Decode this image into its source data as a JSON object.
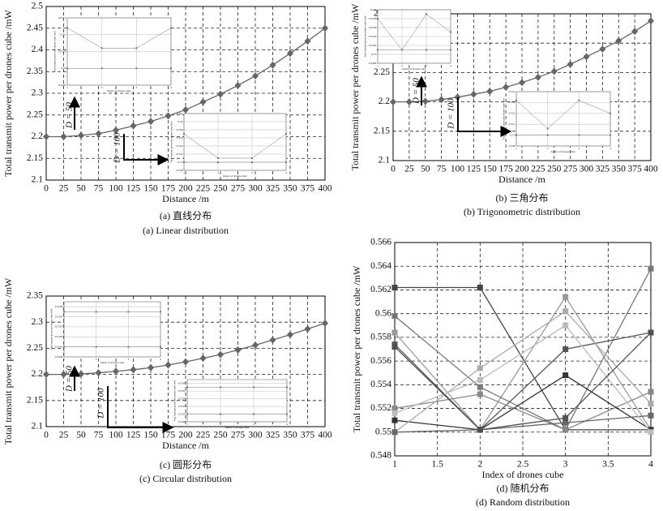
{
  "chart_data": [
    {
      "type": "line",
      "color": "#666666",
      "marker": "diamond",
      "x": [
        0,
        25,
        50,
        75,
        100,
        125,
        150,
        175,
        200,
        225,
        250,
        275,
        300,
        325,
        350,
        375,
        400
      ],
      "values": [
        2.2,
        2.2,
        2.203,
        2.207,
        2.215,
        2.225,
        2.235,
        2.248,
        2.262,
        2.28,
        2.298,
        2.318,
        2.34,
        2.365,
        2.392,
        2.42,
        2.45
      ],
      "xlim": [
        0,
        400
      ],
      "xticks": [
        0,
        25,
        50,
        75,
        100,
        125,
        150,
        175,
        200,
        225,
        250,
        275,
        300,
        325,
        350,
        375,
        400
      ],
      "ylim": [
        2.1,
        2.5
      ],
      "yticks": [
        2.1,
        2.15,
        2.2,
        2.25,
        2.3,
        2.35,
        2.4,
        2.45,
        2.5
      ],
      "grid": true,
      "x_label": "Distance /m",
      "y_label": "Total transmit power per drones cube /mW",
      "caption": "(a) 直线分布",
      "subtitle": "(a) Linear distribution",
      "annotations": [
        "D = 50",
        "D = 100"
      ],
      "insets": [
        {
          "type": "line",
          "x": [
            1,
            2,
            3,
            4
          ],
          "xlim": [
            1,
            4
          ],
          "xticks": [
            1,
            2,
            3,
            4
          ],
          "ylim": [
            0.5495,
            0.5515
          ],
          "yticks": [
            0.5495,
            0.55,
            0.5505,
            0.551,
            0.5515
          ],
          "grid": true,
          "x_label": "Index of drones cube",
          "y_label": "Total transmit power per drones cube /mW",
          "series": [
            {
              "color": "#777777",
              "values": [
                0.5512,
                0.5506,
                0.5506,
                0.5512
              ]
            },
            {
              "color": "#777777",
              "values": [
                0.55,
                0.55,
                0.55,
                0.55
              ]
            }
          ]
        },
        {
          "type": "line",
          "x": [
            1,
            2,
            3,
            4
          ],
          "xlim": [
            1,
            4
          ],
          "xticks": [
            1,
            2,
            3,
            4
          ],
          "ylim": [
            0.548,
            0.562
          ],
          "yticks": [
            0.548,
            0.55,
            0.552,
            0.554,
            0.556,
            0.558,
            0.56,
            0.562
          ],
          "grid": true,
          "x_label": "Index of drones cube",
          "y_label": "Total transmit power per drones cube /mW",
          "series": [
            {
              "color": "#777777",
              "values": [
                0.557,
                0.551,
                0.551,
                0.557
              ]
            },
            {
              "color": "#777777",
              "values": [
                0.55,
                0.55,
                0.55,
                0.55
              ]
            }
          ]
        }
      ]
    },
    {
      "type": "line",
      "color": "#666666",
      "marker": "diamond",
      "x": [
        0,
        25,
        50,
        75,
        100,
        125,
        150,
        175,
        200,
        225,
        250,
        275,
        300,
        325,
        350,
        375,
        400
      ],
      "values": [
        2.2,
        2.2,
        2.201,
        2.204,
        2.208,
        2.213,
        2.218,
        2.225,
        2.233,
        2.242,
        2.252,
        2.264,
        2.277,
        2.29,
        2.304,
        2.32,
        2.338
      ],
      "xlim": [
        0,
        400
      ],
      "xticks": [
        0,
        25,
        50,
        75,
        100,
        125,
        150,
        175,
        200,
        225,
        250,
        275,
        300,
        325,
        350,
        375,
        400
      ],
      "ylim": [
        2.1,
        2.35
      ],
      "yticks": [
        2.1,
        2.15,
        2.2,
        2.25,
        2.3,
        2.35
      ],
      "grid": true,
      "x_label": "Distance /m",
      "y_label": "Total transmit power per drones cube /mW",
      "caption": "(b) 三角分布",
      "subtitle": "(b) Trigonometric distribution",
      "annotations": [
        "D = 50",
        "D = 100"
      ],
      "insets": [
        {
          "type": "line",
          "x": [
            1,
            2,
            3,
            4
          ],
          "xlim": [
            1,
            4
          ],
          "xticks": [
            1,
            2,
            3,
            4
          ],
          "ylim": [
            0.5498,
            0.551
          ],
          "yticks": [
            0.5498,
            0.55,
            0.5502,
            0.5504,
            0.5506,
            0.5508,
            0.551
          ],
          "grid": true,
          "x_label": "Index of drones cube",
          "y_label": "Total transmit power per drones cube /mW",
          "series": [
            {
              "color": "#777777",
              "values": [
                0.5508,
                0.5501,
                0.5509,
                0.5505
              ]
            },
            {
              "color": "#777777",
              "values": [
                0.5501,
                0.5501,
                0.5501,
                0.5501
              ]
            }
          ]
        },
        {
          "type": "line",
          "x": [
            1,
            2,
            3,
            4
          ],
          "xlim": [
            1,
            4
          ],
          "xticks": [
            1,
            2,
            3,
            4
          ],
          "ylim": [
            0.549,
            0.554
          ],
          "yticks": [
            0.549,
            0.55,
            0.551,
            0.552,
            0.553,
            0.554
          ],
          "grid": true,
          "x_label": "Index of drones cube",
          "y_label": "Total transmit power per drones cube /mW",
          "series": [
            {
              "color": "#777777",
              "values": [
                0.5532,
                0.5506,
                0.5532,
                0.552
              ]
            },
            {
              "color": "#777777",
              "values": [
                0.55,
                0.55,
                0.55,
                0.55
              ]
            }
          ]
        }
      ]
    },
    {
      "type": "line",
      "color": "#666666",
      "marker": "diamond",
      "x": [
        0,
        25,
        50,
        75,
        100,
        125,
        150,
        175,
        200,
        225,
        250,
        275,
        300,
        325,
        350,
        375,
        400
      ],
      "values": [
        2.2,
        2.2,
        2.201,
        2.203,
        2.206,
        2.209,
        2.213,
        2.218,
        2.224,
        2.231,
        2.238,
        2.247,
        2.256,
        2.266,
        2.276,
        2.287,
        2.298
      ],
      "xlim": [
        0,
        400
      ],
      "xticks": [
        0,
        25,
        50,
        75,
        100,
        125,
        150,
        175,
        200,
        225,
        250,
        275,
        300,
        325,
        350,
        375,
        400
      ],
      "ylim": [
        2.1,
        2.35
      ],
      "yticks": [
        2.1,
        2.15,
        2.2,
        2.25,
        2.3,
        2.35
      ],
      "grid": true,
      "x_label": "Distance /m",
      "y_label": "Total transmit power per drones cube /mW",
      "caption": "(c) 圆形分布",
      "subtitle": "(c) Circular distribution",
      "annotations": [
        "D = 50",
        "D = 100"
      ],
      "insets": [
        {
          "type": "line",
          "x": [
            1,
            2,
            3,
            4
          ],
          "xlim": [
            1,
            4
          ],
          "xticks": [
            1,
            2,
            3,
            4
          ],
          "ylim": [
            0.5499,
            0.551
          ],
          "yticks": [
            0.5499,
            0.5501,
            0.5503,
            0.5505,
            0.5507,
            0.5509
          ],
          "grid": true,
          "x_label": "Index of drones cube",
          "y_label": "Total transmit power per drones cube /mW",
          "series": [
            {
              "color": "#777777",
              "values": [
                0.5508,
                0.5508,
                0.5508,
                0.5508
              ]
            },
            {
              "color": "#777777",
              "values": [
                0.5501,
                0.5501,
                0.5501,
                0.5501
              ]
            }
          ]
        },
        {
          "type": "line",
          "x": [
            1,
            2,
            3,
            4
          ],
          "xlim": [
            1,
            4
          ],
          "xticks": [
            1,
            2,
            3,
            4
          ],
          "ylim": [
            0.5499,
            0.551
          ],
          "yticks": [
            0.5499,
            0.5501,
            0.5503,
            0.5505,
            0.5507,
            0.5509
          ],
          "grid": true,
          "x_label": "Index of drones cube",
          "y_label": "Total transmit power per drones cube /mW",
          "series": [
            {
              "color": "#777777",
              "values": [
                0.5508,
                0.5508,
                0.5508,
                0.5508
              ]
            },
            {
              "color": "#777777",
              "values": [
                0.5501,
                0.5501,
                0.5501,
                0.5501
              ]
            }
          ]
        }
      ]
    },
    {
      "type": "line",
      "marker": "square",
      "x": [
        1,
        2,
        3,
        4
      ],
      "xlim": [
        1,
        4
      ],
      "xticks": [
        1,
        1.5,
        2,
        2.5,
        3,
        3.5,
        4
      ],
      "ylim": [
        0.548,
        0.566
      ],
      "yticks": [
        0.548,
        0.55,
        0.552,
        0.554,
        0.556,
        0.558,
        0.56,
        0.562,
        0.564,
        0.566
      ],
      "grid": true,
      "x_label": "Index of drones cube",
      "y_label": "Total transmit power per drones cube /mW",
      "caption": "(d) 随机分布",
      "subtitle": "(d) Random distribution",
      "series": [
        {
          "color": "#444444",
          "values": [
            0.5622,
            0.5622,
            0.5502,
            0.5502
          ]
        },
        {
          "color": "#999999",
          "values": [
            0.5584,
            0.5502,
            0.5614,
            0.5502
          ]
        },
        {
          "color": "#777777",
          "values": [
            0.5598,
            0.5538,
            0.5502,
            0.5638
          ]
        },
        {
          "color": "#555555",
          "values": [
            0.5574,
            0.5502,
            0.557,
            0.5584
          ]
        },
        {
          "color": "#888888",
          "values": [
            0.552,
            0.5532,
            0.5502,
            0.5534
          ]
        },
        {
          "color": "#333333",
          "values": [
            0.551,
            0.5502,
            0.5548,
            0.5502
          ]
        },
        {
          "color": "#aaaaaa",
          "values": [
            0.55,
            0.5554,
            0.5602,
            0.5524
          ]
        },
        {
          "color": "#666666",
          "values": [
            0.55,
            0.5502,
            0.5508,
            0.5514
          ]
        },
        {
          "color": "#bbbbbb",
          "values": [
            0.5516,
            0.5544,
            0.559,
            0.55
          ]
        },
        {
          "color": "#505050",
          "values": [
            0.5572,
            0.5502,
            0.5512,
            0.5584
          ]
        }
      ]
    }
  ]
}
